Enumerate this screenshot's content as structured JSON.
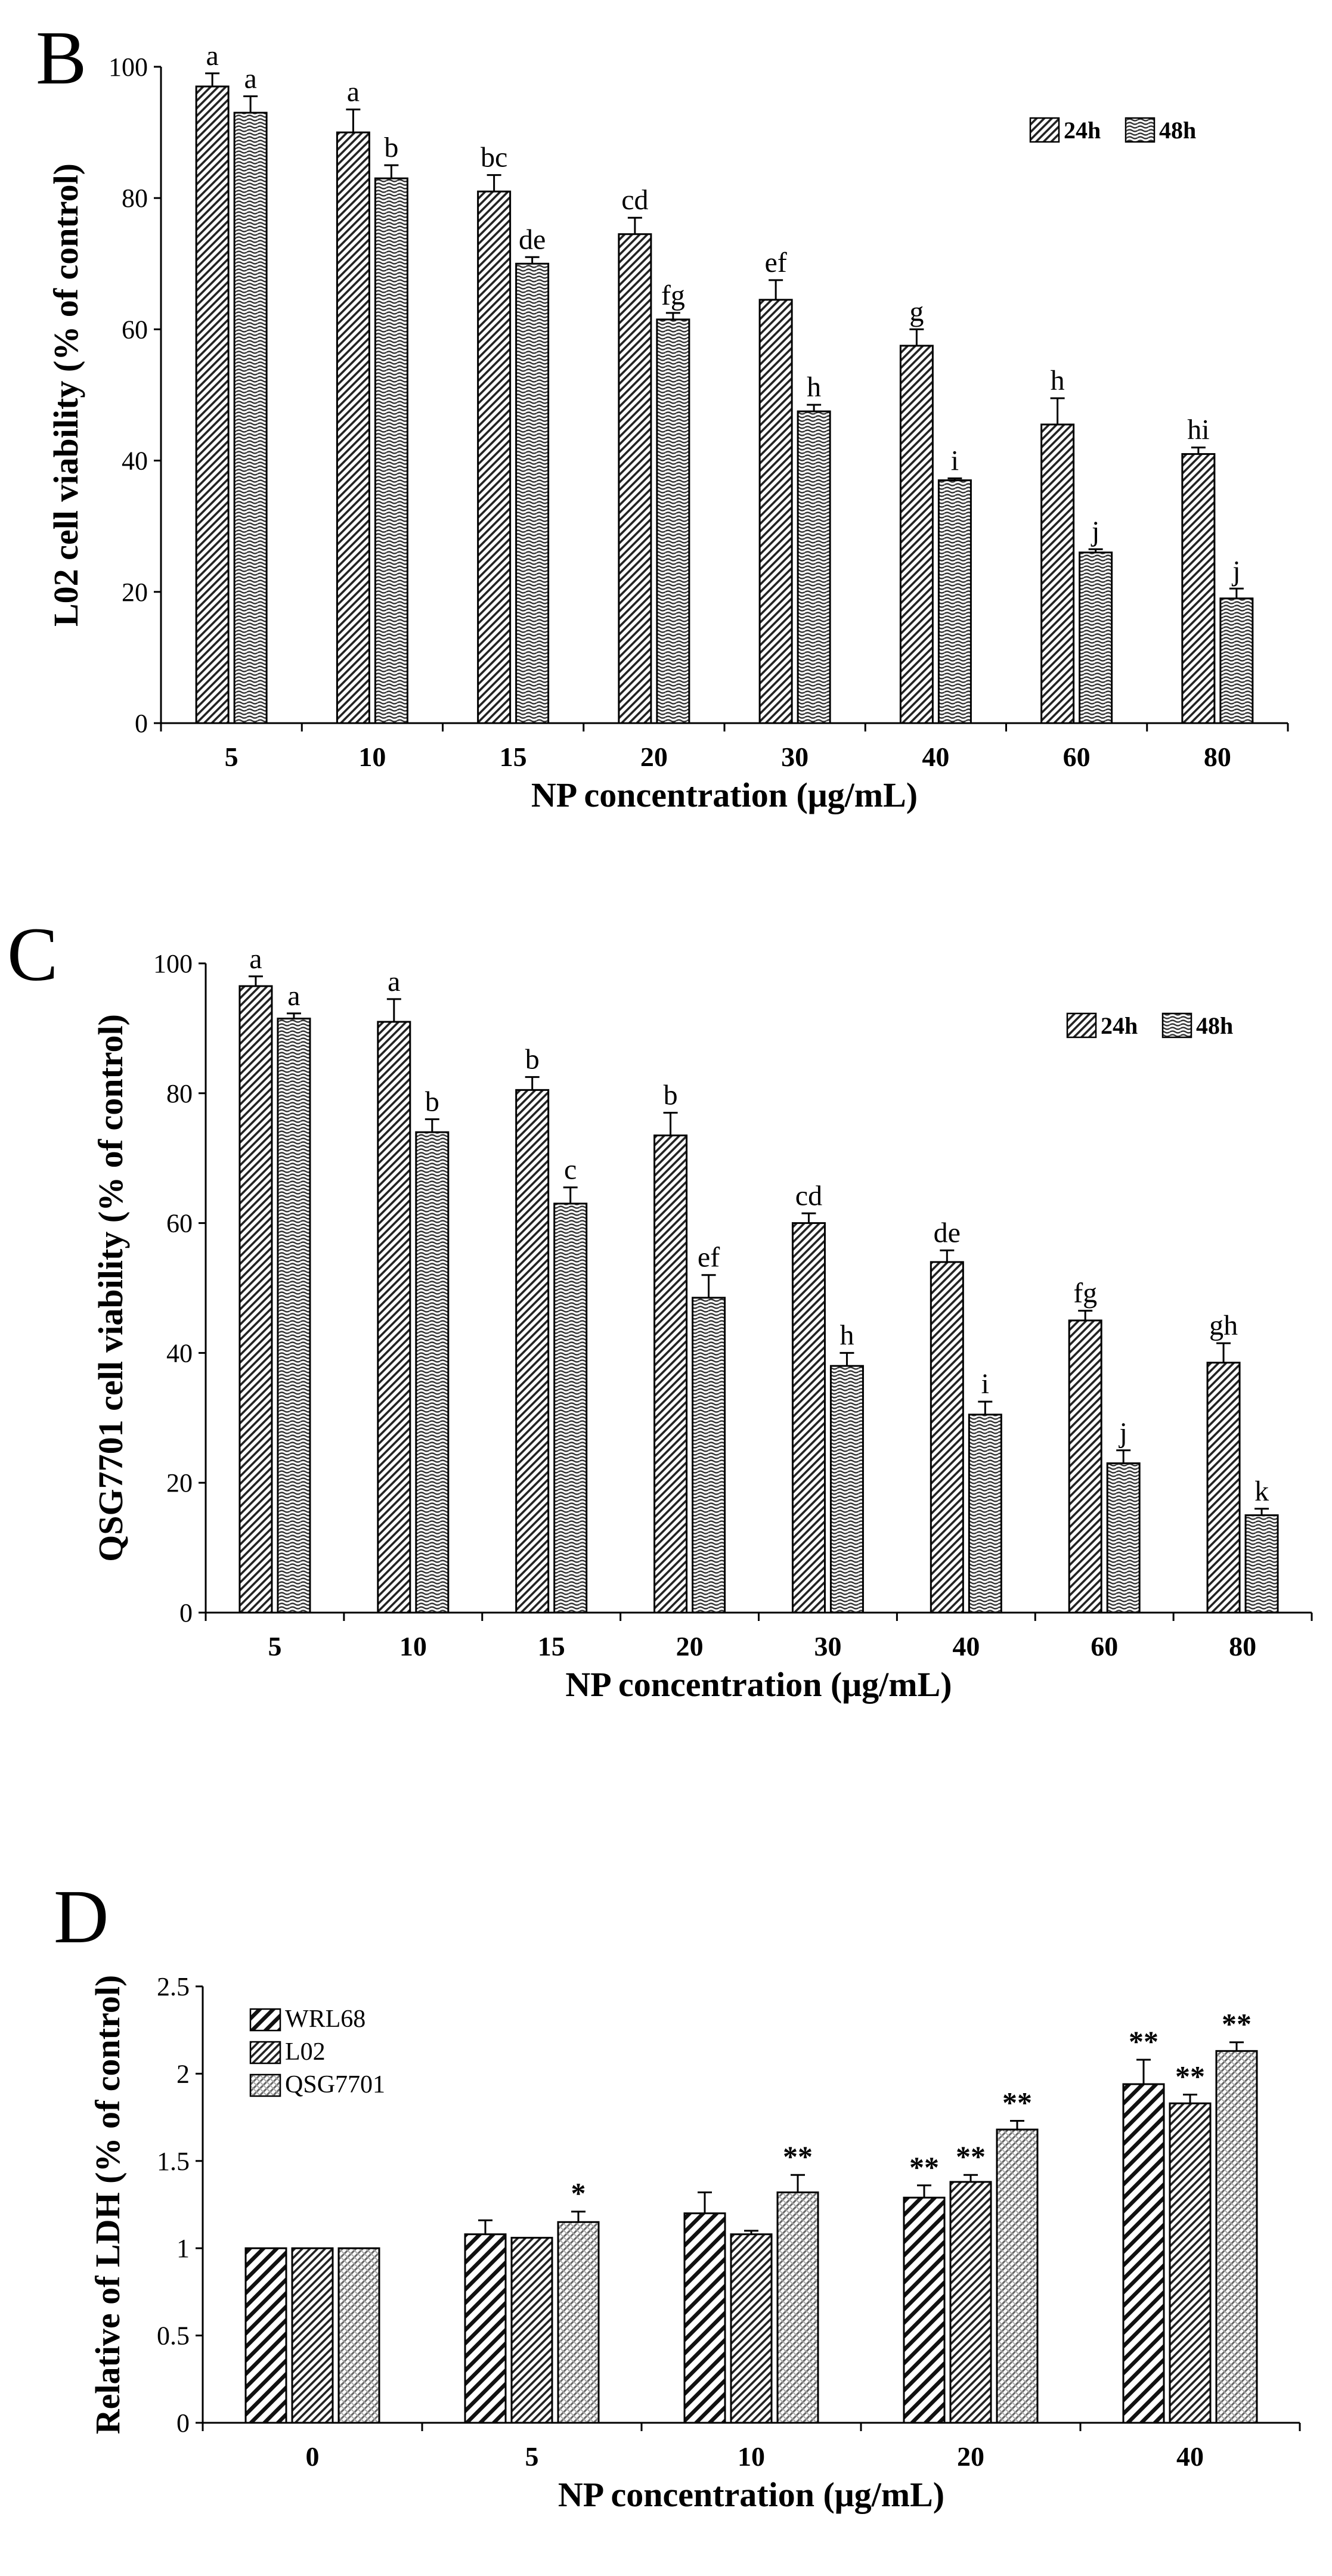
{
  "chart_data": [
    {
      "panel": "B",
      "type": "bar",
      "xlabel": "NP concentration (μg/mL)",
      "ylabel": "L02 cell viability (% of control)",
      "ylim": [
        0,
        100
      ],
      "yticks": [
        "0",
        "20",
        "40",
        "60",
        "80",
        "100"
      ],
      "categories": [
        "5",
        "10",
        "15",
        "20",
        "30",
        "40",
        "60",
        "80"
      ],
      "legend_position": "top-right",
      "series": [
        {
          "name": "24h",
          "pattern": "diag-dense",
          "values": [
            97,
            90,
            81,
            74.5,
            64.5,
            57.5,
            45.5,
            41
          ],
          "errors": [
            2,
            3.5,
            2.5,
            2.5,
            3,
            2.5,
            4,
            1
          ],
          "labels": [
            "a",
            "a",
            "bc",
            "cd",
            "ef",
            "g",
            "h",
            "hi"
          ]
        },
        {
          "name": "48h",
          "pattern": "wave",
          "values": [
            93,
            83,
            70,
            61.5,
            47.5,
            37,
            26,
            19
          ],
          "errors": [
            2.5,
            2,
            1,
            1,
            1,
            0.3,
            0.5,
            1.5
          ],
          "labels": [
            "a",
            "b",
            "de",
            "fg",
            "h",
            "i",
            "j",
            "j"
          ]
        }
      ]
    },
    {
      "panel": "C",
      "type": "bar",
      "xlabel": "NP concentration (μg/mL)",
      "ylabel": "QSG7701 cell viability (% of control)",
      "ylim": [
        0,
        100
      ],
      "yticks": [
        "0",
        "20",
        "40",
        "60",
        "80",
        "100"
      ],
      "categories": [
        "5",
        "10",
        "15",
        "20",
        "30",
        "40",
        "60",
        "80"
      ],
      "legend_position": "top-right",
      "series": [
        {
          "name": "24h",
          "pattern": "diag-dense",
          "values": [
            96.5,
            91,
            80.5,
            73.5,
            60,
            54,
            45,
            38.5
          ],
          "errors": [
            1.5,
            3.5,
            2,
            3.5,
            1.5,
            1.8,
            1.5,
            3
          ],
          "labels": [
            "a",
            "a",
            "b",
            "b",
            "cd",
            "de",
            "fg",
            "gh"
          ]
        },
        {
          "name": "48h",
          "pattern": "wave",
          "values": [
            91.5,
            74,
            63,
            48.5,
            38,
            30.5,
            23,
            15
          ],
          "errors": [
            0.8,
            2,
            2.5,
            3.5,
            2,
            2,
            2,
            1
          ],
          "labels": [
            "a",
            "b",
            "c",
            "ef",
            "h",
            "i",
            "j",
            "k"
          ]
        }
      ]
    },
    {
      "panel": "D",
      "type": "bar",
      "xlabel": "NP concentration  (μg/mL)",
      "ylabel": "Relative of LDH (% of control)",
      "ylim": [
        0,
        2.5
      ],
      "yticks": [
        "0",
        "0.5",
        "1",
        "1.5",
        "2",
        "2.5"
      ],
      "categories": [
        "0",
        "5",
        "10",
        "20",
        "40"
      ],
      "legend_position": "top-left",
      "series": [
        {
          "name": "WRL68",
          "pattern": "diag-wide",
          "values": [
            1.0,
            1.08,
            1.2,
            1.29,
            1.94
          ],
          "errors": [
            0,
            0.08,
            0.12,
            0.07,
            0.14
          ],
          "labels": [
            "",
            "",
            "",
            "**",
            "**"
          ]
        },
        {
          "name": "L02",
          "pattern": "diag-dense",
          "values": [
            1.0,
            1.06,
            1.08,
            1.38,
            1.83
          ],
          "errors": [
            0,
            0,
            0.02,
            0.04,
            0.05
          ],
          "labels": [
            "",
            "",
            "",
            "**",
            "**"
          ]
        },
        {
          "name": "QSG7701",
          "pattern": "dots",
          "values": [
            1.0,
            1.15,
            1.32,
            1.68,
            2.13
          ],
          "errors": [
            0,
            0.06,
            0.1,
            0.05,
            0.05
          ],
          "labels": [
            "",
            "*",
            "**",
            "**",
            "**"
          ]
        }
      ]
    }
  ]
}
